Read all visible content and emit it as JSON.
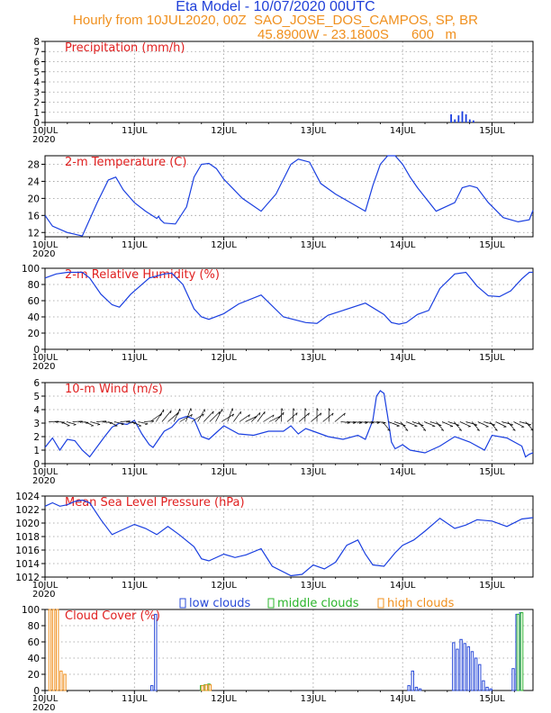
{
  "header": {
    "title": "Eta Model - 10/07/2020 00UTC",
    "subtitle": "Hourly from 10JUL2020, 00Z  SAO_JOSE_DOS_CAMPOS, SP, BR",
    "coords": "45.8900W - 23.1800S      600   m"
  },
  "colors": {
    "title": "#1f3fd8",
    "orange": "#f0901e",
    "red": "#e02020",
    "line": "#1a3fe0",
    "grid": "#9a9a9a"
  },
  "x_axis": {
    "range_hours": [
      0,
      131
    ],
    "tick_labels": [
      {
        "hour": 0,
        "label": "10JUL"
      },
      {
        "hour": 24,
        "label": "11JUL"
      },
      {
        "hour": 48,
        "label": "12JUL"
      },
      {
        "hour": 72,
        "label": "13JUL"
      },
      {
        "hour": 96,
        "label": "14JUL"
      },
      {
        "hour": 120,
        "label": "15JUL"
      }
    ],
    "year_label": "2020"
  },
  "chart_data": [
    {
      "type": "bar",
      "title": "Precipitation (mm/h)",
      "ylim": [
        0,
        8
      ],
      "yticks": [
        0,
        1,
        2,
        3,
        4,
        5,
        6,
        7,
        8
      ],
      "x": [
        109,
        110,
        111,
        112,
        113,
        114,
        115
      ],
      "values": [
        0.8,
        0.3,
        0.7,
        1.1,
        0.8,
        0.3,
        0.2
      ]
    },
    {
      "type": "line",
      "title": "2-m Temperature (C)",
      "ylim": [
        11,
        30
      ],
      "yticks": [
        12,
        16,
        20,
        24,
        28
      ],
      "x": [
        0,
        2,
        6,
        10,
        14,
        17,
        19,
        21,
        24,
        27,
        30,
        30.5,
        31,
        32,
        35,
        38,
        40,
        42,
        44,
        46,
        48,
        53,
        58,
        62,
        66,
        68,
        71,
        74,
        78,
        82,
        86,
        88,
        90,
        92,
        94,
        96,
        98,
        100,
        105,
        110,
        112,
        114,
        116,
        119,
        123,
        127,
        130,
        131
      ],
      "values": [
        16,
        13.5,
        12,
        11.2,
        19,
        24.3,
        25,
        22,
        19,
        17,
        15.3,
        15.8,
        15,
        14.2,
        14,
        18,
        25,
        28,
        28.2,
        27,
        24.5,
        20,
        17,
        21,
        28,
        29.2,
        28.5,
        23.5,
        21,
        19,
        17,
        23,
        28,
        30,
        30,
        28,
        25,
        22.5,
        17,
        19,
        22.5,
        23,
        22.5,
        19,
        15.5,
        14.5,
        15,
        17.2
      ]
    },
    {
      "type": "line",
      "title": "2-m Relative Humidity (%)",
      "ylim": [
        0,
        100
      ],
      "yticks": [
        0,
        20,
        40,
        60,
        80,
        100
      ],
      "x": [
        0,
        3,
        6,
        10,
        12,
        15,
        18,
        20,
        23,
        28,
        32,
        34,
        37,
        40,
        42,
        44,
        48,
        52,
        58,
        64,
        70,
        73,
        76,
        80,
        86,
        91,
        93,
        95,
        97,
        100,
        103,
        106,
        110,
        113,
        116,
        119,
        122,
        125,
        128,
        130,
        131
      ],
      "values": [
        88,
        93,
        95,
        95,
        88,
        68,
        55,
        52,
        68,
        88,
        93,
        94,
        80,
        50,
        40,
        37,
        44,
        56,
        67,
        40,
        33,
        32,
        42,
        48,
        57,
        43,
        33,
        31,
        33,
        43,
        48,
        75,
        93,
        95,
        78,
        66,
        65,
        72,
        87,
        95,
        95
      ]
    },
    {
      "type": "line",
      "title": "10-m Wind (m/s)",
      "ylim": [
        0,
        6
      ],
      "yticks": [
        0,
        1,
        2,
        3,
        4,
        5,
        6
      ],
      "x": [
        0,
        2,
        4,
        6,
        8,
        10,
        12,
        16,
        18,
        20,
        22,
        24,
        26,
        28,
        29,
        30,
        32,
        34,
        36,
        38,
        40,
        42,
        44,
        46,
        48,
        52,
        56,
        60,
        64,
        66,
        68,
        70,
        72,
        76,
        80,
        84,
        86,
        88,
        89,
        90,
        91,
        92,
        93,
        94,
        96,
        98,
        102,
        106,
        110,
        114,
        118,
        120,
        124,
        128,
        129,
        130,
        131
      ],
      "values": [
        1.2,
        1.9,
        1.0,
        1.8,
        1.7,
        1.0,
        0.5,
        2.0,
        2.7,
        3.0,
        2.9,
        3.2,
        2.2,
        1.4,
        1.2,
        1.6,
        2.4,
        2.7,
        3.3,
        3.5,
        3.3,
        2.0,
        1.8,
        2.3,
        2.8,
        2.2,
        2.1,
        2.4,
        2.4,
        2.8,
        2.2,
        2.6,
        2.4,
        2.0,
        1.8,
        2.1,
        1.8,
        3.2,
        5.0,
        5.4,
        5.2,
        3.5,
        1.6,
        1.1,
        1.4,
        1.0,
        0.8,
        1.3,
        2.0,
        1.6,
        1.0,
        2.1,
        1.9,
        1.3,
        0.5,
        0.7,
        0.8
      ]
    },
    {
      "type": "line",
      "title": "Mean Sea Level Pressure (hPa)",
      "ylim": [
        1012,
        1024
      ],
      "yticks": [
        1012,
        1014,
        1016,
        1018,
        1020,
        1022,
        1024
      ],
      "x": [
        0,
        2,
        4,
        6,
        8,
        10,
        12,
        15,
        18,
        20,
        24,
        27,
        30,
        33,
        36,
        40,
        42,
        44,
        48,
        51,
        54,
        58,
        61,
        66,
        69,
        72,
        75,
        78,
        81,
        84,
        86,
        88,
        91,
        94,
        96,
        99,
        102,
        106,
        110,
        113,
        116,
        120,
        124,
        128,
        131
      ],
      "values": [
        1022.5,
        1023,
        1022.5,
        1022.7,
        1023.2,
        1023.4,
        1023,
        1020.5,
        1018.3,
        1018.8,
        1019.8,
        1019.2,
        1018.3,
        1019.5,
        1018.3,
        1016.5,
        1014.7,
        1014.4,
        1015.4,
        1014.9,
        1015.3,
        1016.2,
        1013.6,
        1012.2,
        1012.4,
        1013.8,
        1013.2,
        1014.2,
        1016.7,
        1017.5,
        1015.4,
        1013.8,
        1013.6,
        1015.6,
        1016.7,
        1017.5,
        1018.8,
        1020.7,
        1019.2,
        1019.7,
        1020.5,
        1020.3,
        1019.5,
        1020.6,
        1020.8
      ]
    },
    {
      "type": "bar",
      "title": "Cloud Cover (%)",
      "ylim": [
        0,
        100
      ],
      "yticks": [
        0,
        20,
        40,
        60,
        80,
        100
      ],
      "legend": [
        "low clouds",
        "middle clouds",
        "high clouds"
      ],
      "series": [
        {
          "name": "low clouds",
          "x": [
            29,
            30,
            98,
            99,
            100,
            101,
            110,
            111,
            112,
            113,
            114,
            115,
            116,
            117,
            118,
            119,
            120,
            126,
            127,
            128
          ],
          "values": [
            6,
            94,
            6,
            24,
            4,
            2,
            59,
            51,
            63,
            58,
            54,
            48,
            40,
            32,
            12,
            4,
            2,
            27,
            94,
            96
          ]
        },
        {
          "name": "middle clouds",
          "x": [
            42,
            43,
            44,
            127,
            128
          ],
          "values": [
            6,
            7,
            8,
            94,
            96
          ]
        },
        {
          "name": "high clouds",
          "x": [
            1,
            2,
            3,
            4,
            5,
            42,
            43,
            44
          ],
          "values": [
            100,
            100,
            100,
            24,
            20,
            6,
            7,
            7
          ]
        }
      ]
    }
  ]
}
